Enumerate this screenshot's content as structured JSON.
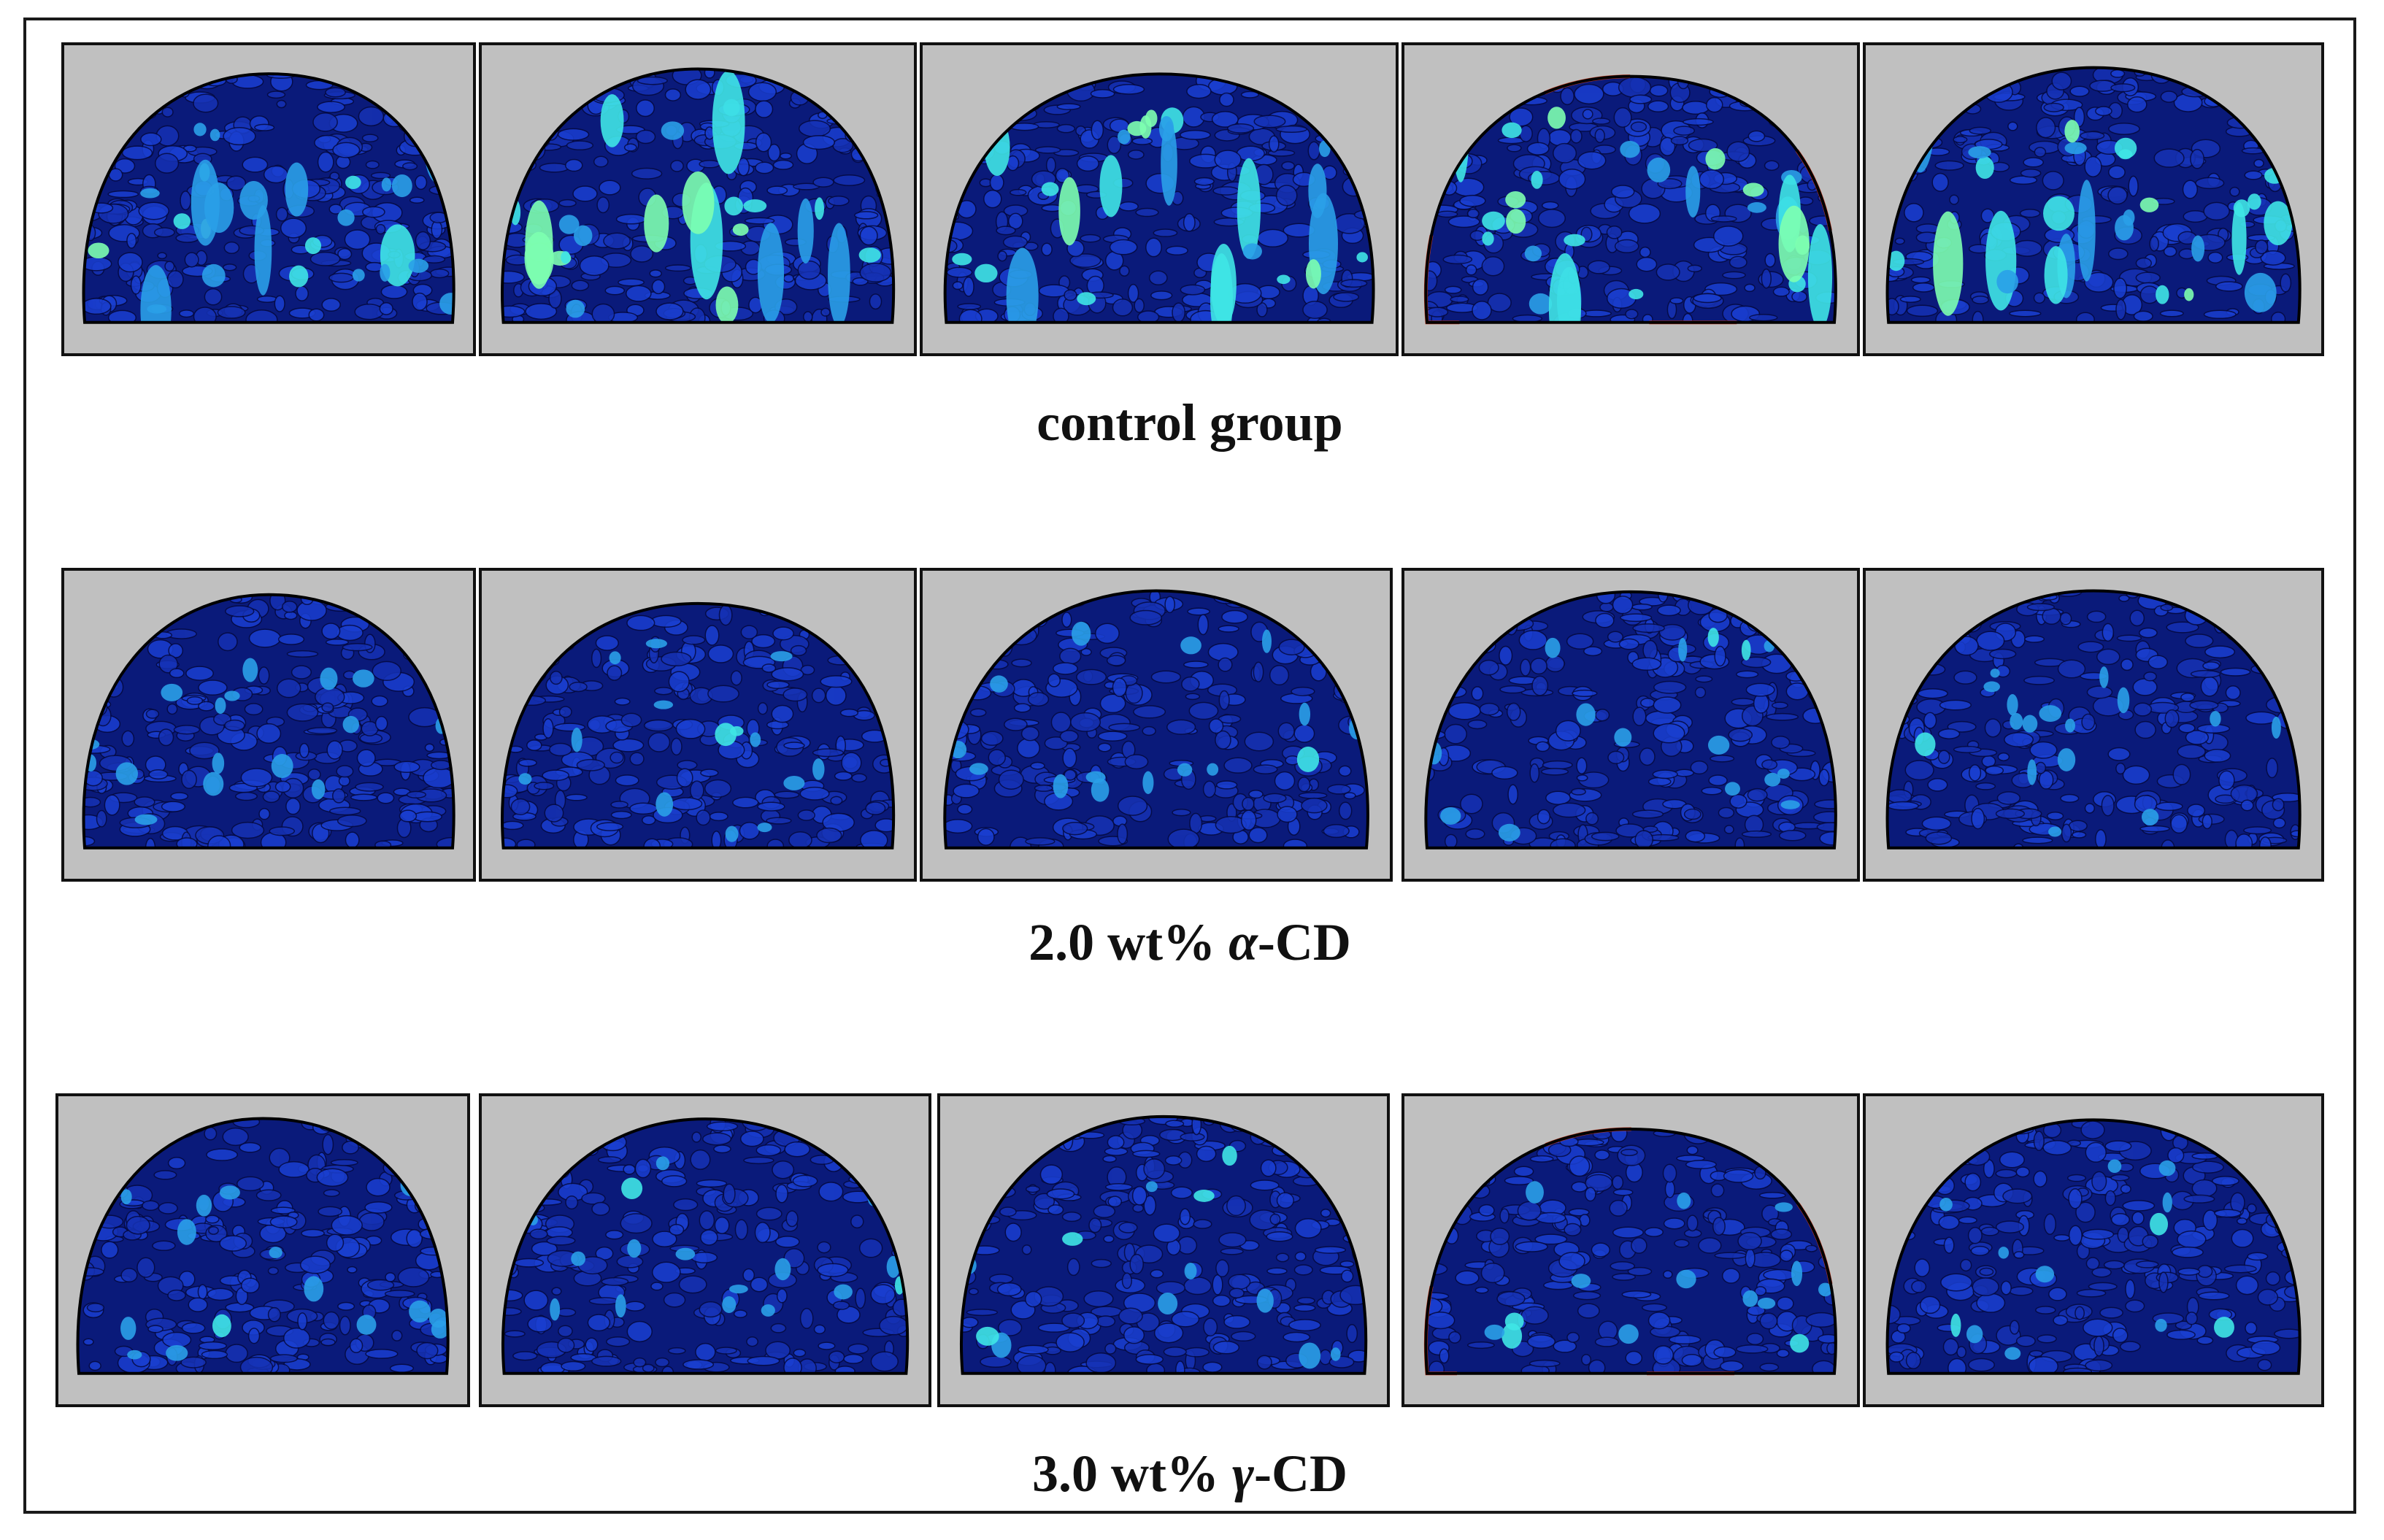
{
  "groups": [
    {
      "label": "control group",
      "variant": "control"
    },
    {
      "label_pre": "2.0 wt% ",
      "label_greek": "α",
      "label_post": "-CD",
      "variant": "alpha"
    },
    {
      "label_pre": "3.0 wt% ",
      "label_greek": "γ",
      "label_post": "-CD",
      "variant": "gamma"
    }
  ],
  "colors": {
    "panel_bg": "#c0c0c0",
    "crumb_dark": "#0a1a7a",
    "crumb_mid": "#1632b4",
    "pore_light": "#2aa0e8",
    "pore_cyan": "#3fe6e6",
    "pore_green": "#7dffb0",
    "edge_red": "#c83a1e",
    "outline": "#000000"
  }
}
